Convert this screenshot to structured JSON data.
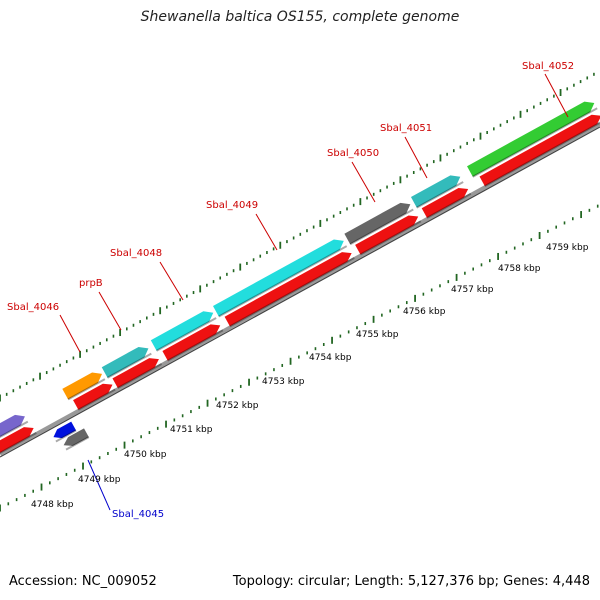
{
  "title": "Shewanella baltica OS155, complete genome",
  "accession": "Accession: NC_009052",
  "summary": "Topology: circular; Length: 5,127,376 bp; Genes: 4,448",
  "colors": {
    "cds_red": "#ee1111",
    "cyan": "#22dddd",
    "teal": "#33bbbb",
    "green": "#33cc33",
    "gray": "#666666",
    "orange": "#ff9900",
    "blue": "#0011dd",
    "purple": "#7766cc",
    "tick": "#226622",
    "label_red": "#cc0000",
    "label_blue": "#0000cc",
    "backbone": "#888888"
  },
  "gene_labels": [
    {
      "name": "Sbal_4046",
      "color": "red"
    },
    {
      "name": "prpB",
      "color": "red"
    },
    {
      "name": "Sbal_4048",
      "color": "red"
    },
    {
      "name": "Sbal_4049",
      "color": "red"
    },
    {
      "name": "Sbal_4050",
      "color": "red"
    },
    {
      "name": "Sbal_4051",
      "color": "red"
    },
    {
      "name": "Sbal_4052",
      "color": "red"
    },
    {
      "name": "Sbal_4045",
      "color": "blue"
    }
  ],
  "kbp_labels": [
    "4748 kbp",
    "4749 kbp",
    "4750 kbp",
    "4751 kbp",
    "4752 kbp",
    "4753 kbp",
    "4754 kbp",
    "4755 kbp",
    "4756 kbp",
    "4757 kbp",
    "4758 kbp",
    "4759 kbp"
  ]
}
